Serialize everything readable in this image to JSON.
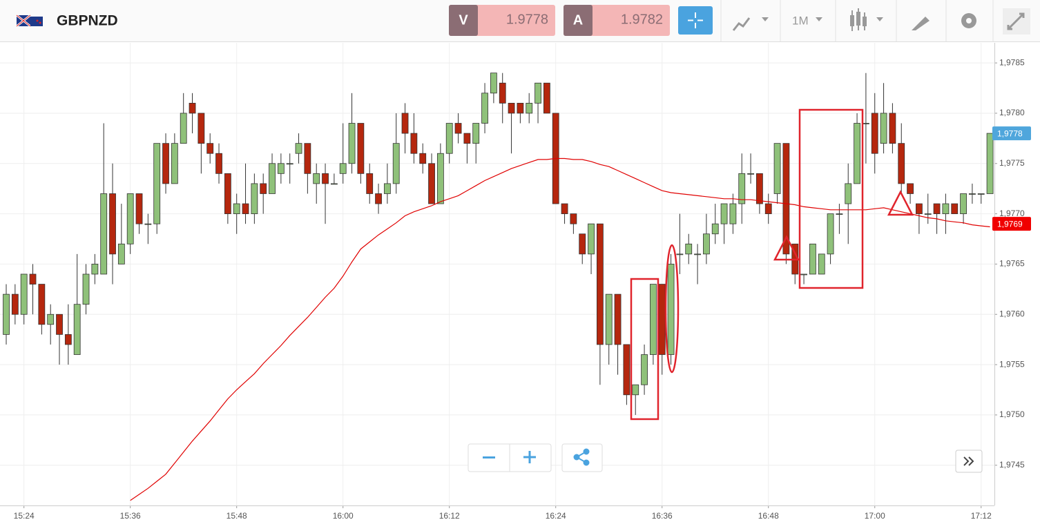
{
  "header": {
    "symbol": "GBPNZD",
    "bid_label": "V",
    "bid": "1.9778",
    "ask_label": "A",
    "ask": "1.9782",
    "timeframe": "1M"
  },
  "chart_data": {
    "type": "candlestick",
    "categories": [
      null,
      null,
      "15:24",
      null,
      null,
      null,
      null,
      null,
      null,
      null,
      null,
      null,
      null,
      null,
      "15:36",
      null,
      null,
      null,
      null,
      null,
      null,
      null,
      null,
      null,
      null,
      null,
      "15:48",
      null,
      null,
      null,
      null,
      null,
      null,
      null,
      null,
      null,
      null,
      null,
      "16:00",
      null,
      null,
      null,
      null,
      null,
      null,
      null,
      null,
      null,
      null,
      null,
      "16:12",
      null,
      null,
      null,
      null,
      null,
      null,
      null,
      null,
      null,
      null,
      null,
      "16:24",
      null,
      null,
      null,
      null,
      null,
      null,
      null,
      null,
      null,
      null,
      null,
      "16:36",
      null,
      null,
      null,
      null,
      null,
      null,
      null,
      null,
      null,
      null,
      null,
      "16:48",
      null,
      null,
      null,
      null,
      null,
      null,
      null,
      null,
      null,
      null,
      null,
      "17:00",
      null,
      null,
      null,
      null,
      null,
      null,
      null,
      null,
      null,
      null,
      null,
      "17:12",
      null
    ],
    "open": [
      1.9758,
      1.9762,
      1.976,
      1.9764,
      1.9763,
      1.9759,
      1.976,
      1.9758,
      1.9756,
      1.9761,
      1.9764,
      1.9764,
      1.9772,
      1.9765,
      1.9767,
      1.9772,
      1.9769,
      1.9769,
      1.9777,
      1.9773,
      1.9777,
      1.9781,
      1.978,
      1.9777,
      1.9776,
      1.9774,
      1.977,
      1.9771,
      1.977,
      1.9773,
      1.9772,
      1.9774,
      1.9775,
      1.9776,
      1.9777,
      1.9773,
      1.9774,
      1.9773,
      1.9774,
      1.9775,
      1.9779,
      1.9774,
      1.9772,
      1.9772,
      1.9773,
      1.978,
      1.9778,
      1.9776,
      1.9775,
      1.9771,
      1.9776,
      1.9779,
      1.9778,
      1.9777,
      1.9779,
      1.9782,
      1.9783,
      1.9781,
      1.9781,
      1.978,
      1.9781,
      1.9783,
      1.978,
      1.9771,
      1.977,
      1.9768,
      1.9766,
      1.9769,
      1.9757,
      1.9762,
      1.9757,
      1.9752,
      1.9753,
      1.9756,
      1.9763,
      1.9756,
      1.9766,
      1.9766,
      1.9766,
      1.9766,
      1.9768,
      1.9769,
      1.9769,
      1.9771,
      1.9774,
      1.9774,
      1.9771,
      1.9772,
      1.9777,
      1.9767,
      1.9764,
      1.9764,
      1.9764,
      1.9766,
      1.977,
      1.9771,
      1.9773,
      1.9779,
      1.978,
      1.9777,
      1.978,
      1.9777,
      1.9773,
      1.9771,
      1.977,
      1.9771,
      1.977,
      1.9771,
      1.977,
      1.9772,
      1.9772,
      1.9772
    ],
    "high": [
      1.9763,
      1.9763,
      1.9764,
      1.9765,
      1.9763,
      1.9761,
      1.976,
      1.9761,
      1.9766,
      1.9765,
      1.9766,
      1.9779,
      1.9775,
      1.9771,
      1.9772,
      1.9772,
      1.977,
      1.9777,
      1.9778,
      1.9778,
      1.9782,
      1.9782,
      1.978,
      1.9778,
      1.9777,
      1.9774,
      1.9772,
      1.9775,
      1.9774,
      1.9774,
      1.9776,
      1.9776,
      1.9776,
      1.9778,
      1.9777,
      1.9775,
      1.9775,
      1.9774,
      1.9779,
      1.9782,
      1.9779,
      1.9775,
      1.9773,
      1.9775,
      1.978,
      1.9781,
      1.978,
      1.9777,
      1.9776,
      1.9777,
      1.9779,
      1.978,
      1.9778,
      1.9779,
      1.9783,
      1.9784,
      1.9784,
      1.9781,
      1.9781,
      1.9782,
      1.9783,
      1.9783,
      1.978,
      1.9771,
      1.977,
      1.9768,
      1.9769,
      1.9769,
      1.9762,
      1.9762,
      1.9757,
      1.9753,
      1.9757,
      1.9763,
      1.9763,
      1.9766,
      1.977,
      1.9768,
      1.9767,
      1.977,
      1.9771,
      1.9771,
      1.9772,
      1.9776,
      1.9776,
      1.9774,
      1.9772,
      1.9777,
      1.9777,
      1.9767,
      1.9764,
      1.9767,
      1.9766,
      1.977,
      1.9771,
      1.9775,
      1.978,
      1.9784,
      1.9782,
      1.9783,
      1.9781,
      1.9779,
      1.9773,
      1.9771,
      1.9772,
      1.9771,
      1.9772,
      1.9771,
      1.9772,
      1.9773,
      1.9772,
      1.9778
    ],
    "low": [
      1.9757,
      1.9759,
      1.9759,
      1.976,
      1.9758,
      1.9757,
      1.9755,
      1.9755,
      1.9756,
      1.976,
      1.9763,
      1.9764,
      1.9763,
      1.9765,
      1.9766,
      1.9768,
      1.9767,
      1.9768,
      1.9772,
      1.9773,
      1.9777,
      1.9778,
      1.9774,
      1.9775,
      1.9773,
      1.9769,
      1.9768,
      1.9769,
      1.9769,
      1.977,
      1.9772,
      1.9773,
      1.9773,
      1.9775,
      1.9772,
      1.9771,
      1.9769,
      1.9773,
      1.9773,
      1.9774,
      1.9773,
      1.9771,
      1.977,
      1.9771,
      1.9772,
      1.9776,
      1.9775,
      1.9774,
      1.9771,
      1.9771,
      1.9775,
      1.9777,
      1.9775,
      1.9775,
      1.9778,
      1.9781,
      1.9779,
      1.9776,
      1.9779,
      1.9779,
      1.9779,
      1.978,
      1.9771,
      1.9769,
      1.9768,
      1.9765,
      1.9764,
      1.9753,
      1.9755,
      1.9754,
      1.9751,
      1.975,
      1.9752,
      1.9755,
      1.9754,
      1.9755,
      1.9764,
      1.9765,
      1.9763,
      1.9765,
      1.9767,
      1.9767,
      1.9768,
      1.9769,
      1.9773,
      1.977,
      1.9769,
      1.9771,
      1.9765,
      1.9763,
      1.9763,
      1.9764,
      1.9764,
      1.9765,
      1.9768,
      1.9767,
      1.9773,
      1.9775,
      1.9774,
      1.9776,
      1.9776,
      1.9772,
      1.9771,
      1.9768,
      1.9769,
      1.9768,
      1.9768,
      1.977,
      1.9769,
      1.9771,
      1.9771,
      1.9772
    ],
    "close": [
      1.9762,
      1.976,
      1.9764,
      1.9763,
      1.9759,
      1.976,
      1.9758,
      1.9757,
      1.9761,
      1.9764,
      1.9765,
      1.9772,
      1.9766,
      1.9767,
      1.9772,
      1.9769,
      1.9769,
      1.9777,
      1.9773,
      1.9777,
      1.978,
      1.978,
      1.9777,
      1.9776,
      1.9774,
      1.977,
      1.9771,
      1.977,
      1.9773,
      1.9772,
      1.9775,
      1.9775,
      1.9775,
      1.9777,
      1.9774,
      1.9774,
      1.9773,
      1.9773,
      1.9775,
      1.9779,
      1.9774,
      1.9772,
      1.9771,
      1.9773,
      1.9777,
      1.9778,
      1.9776,
      1.9775,
      1.9771,
      1.9776,
      1.9779,
      1.9778,
      1.9777,
      1.9779,
      1.9782,
      1.9784,
      1.9781,
      1.978,
      1.978,
      1.9781,
      1.9783,
      1.978,
      1.9771,
      1.977,
      1.9769,
      1.9766,
      1.9769,
      1.9757,
      1.9762,
      1.9757,
      1.9752,
      1.9753,
      1.9756,
      1.9763,
      1.9756,
      1.9765,
      1.9766,
      1.9767,
      1.9766,
      1.9768,
      1.9769,
      1.9771,
      1.9771,
      1.9774,
      1.9774,
      1.9771,
      1.977,
      1.9777,
      1.9766,
      1.9764,
      1.9764,
      1.9767,
      1.9766,
      1.977,
      1.977,
      1.9773,
      1.9779,
      1.9779,
      1.9776,
      1.978,
      1.9777,
      1.9773,
      1.9772,
      1.977,
      1.977,
      1.977,
      1.9771,
      1.977,
      1.9772,
      1.9772,
      1.9772,
      1.9778
    ],
    "up_color": "#8fc17a",
    "down_color": "#b5270e",
    "moving_average": {
      "color": "#e00000",
      "values": [
        null,
        null,
        null,
        null,
        null,
        null,
        null,
        null,
        null,
        null,
        null,
        null,
        null,
        null,
        1.97415,
        1.97421,
        1.97427,
        1.97434,
        1.97441,
        1.97452,
        1.97463,
        1.97474,
        1.97484,
        1.97494,
        1.97505,
        1.97516,
        1.97525,
        1.97533,
        1.97541,
        1.97551,
        1.9756,
        1.97569,
        1.97579,
        1.97588,
        1.97597,
        1.97607,
        1.97617,
        1.97626,
        1.97638,
        1.97652,
        1.97665,
        1.97672,
        1.97679,
        1.97685,
        1.97691,
        1.97698,
        1.97702,
        1.97705,
        1.97708,
        1.97712,
        1.97715,
        1.97718,
        1.97723,
        1.97728,
        1.97733,
        1.97737,
        1.97741,
        1.97745,
        1.97748,
        1.97751,
        1.97754,
        1.97754,
        1.97755,
        1.97755,
        1.97754,
        1.97754,
        1.97752,
        1.97749,
        1.97747,
        1.97743,
        1.97739,
        1.97735,
        1.97731,
        1.97727,
        1.97723,
        1.97721,
        1.9772,
        1.97719,
        1.97718,
        1.97717,
        1.97716,
        1.97715,
        1.97715,
        1.97714,
        1.97714,
        1.97713,
        1.97712,
        1.97711,
        1.9771,
        1.97709,
        1.97707,
        1.97706,
        1.97705,
        1.97704,
        1.97704,
        1.97704,
        1.97704,
        1.97704,
        1.97705,
        1.97706,
        1.97704,
        1.97702,
        1.977,
        1.97698,
        1.97696,
        1.97695,
        1.97693,
        1.97692,
        1.97691,
        1.97689,
        1.97688,
        1.97687
      ]
    },
    "ylim": [
      1.9741,
      1.9787
    ],
    "yticks": [
      {
        "value": 1.9745,
        "label": "1,9745"
      },
      {
        "value": 1.975,
        "label": "1,9750"
      },
      {
        "value": 1.9755,
        "label": "1,9755"
      },
      {
        "value": 1.976,
        "label": "1,9760"
      },
      {
        "value": 1.9765,
        "label": "1,9765"
      },
      {
        "value": 1.977,
        "label": "1,9770"
      },
      {
        "value": 1.9775,
        "label": "1,9775"
      },
      {
        "value": 1.978,
        "label": "1,9780"
      },
      {
        "value": 1.9785,
        "label": "1,9785"
      }
    ],
    "last_price": {
      "value": 1.9778,
      "label": "1,9778",
      "color": "#4fa6dc"
    },
    "average_price": {
      "value": 1.9769,
      "label": "1,9769",
      "color": "#f00000"
    },
    "grid": true
  }
}
